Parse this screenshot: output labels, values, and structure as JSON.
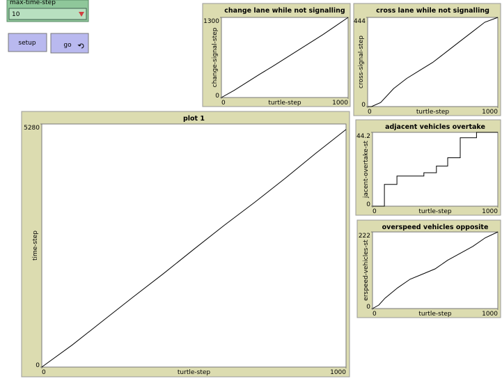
{
  "controls": {
    "chooser": {
      "label": "max-time-step",
      "value": "10"
    },
    "buttons": [
      "setup",
      "go"
    ]
  },
  "chart_data": [
    {
      "type": "line",
      "title": "change lane while not signalling",
      "xlabel": "turtle-step",
      "ylabel": "change-signal-step",
      "x": [
        0,
        100,
        200,
        300,
        400,
        500,
        600,
        700,
        800,
        900,
        1000
      ],
      "values": [
        0,
        115,
        245,
        375,
        500,
        630,
        760,
        890,
        1020,
        1160,
        1300
      ],
      "color": "#000000",
      "xlim": [
        0,
        1000
      ],
      "ylim": [
        0,
        1300
      ],
      "xticks": [
        0,
        1000
      ],
      "yticks": [
        0,
        1300
      ]
    },
    {
      "type": "line",
      "title": "cross lane while not signalling",
      "xlabel": "turtle-step",
      "ylabel": "cross-signal-step",
      "x": [
        0,
        30,
        100,
        200,
        300,
        400,
        500,
        600,
        700,
        800,
        900,
        1000
      ],
      "values": [
        0,
        0,
        20,
        90,
        140,
        180,
        220,
        270,
        320,
        370,
        420,
        444
      ],
      "color": "#000000",
      "xlim": [
        0,
        1000
      ],
      "ylim": [
        0,
        444
      ],
      "xticks": [
        0,
        1000
      ],
      "yticks": [
        0,
        444
      ]
    },
    {
      "type": "line",
      "title": "plot 1",
      "xlabel": "turtle-step",
      "ylabel": "time-step",
      "x": [
        0,
        100,
        200,
        300,
        400,
        500,
        600,
        700,
        800,
        900,
        1000
      ],
      "values": [
        0,
        480,
        1000,
        1520,
        2030,
        2560,
        3080,
        3580,
        4100,
        4640,
        5160
      ],
      "color": "#000000",
      "xlim": [
        0,
        1000
      ],
      "ylim": [
        0,
        5280
      ],
      "xticks": [
        0,
        1000
      ],
      "yticks": [
        0,
        5280
      ]
    },
    {
      "type": "line",
      "title": "adjacent vehicles overtake",
      "xlabel": "turtle-step",
      "ylabel": "jacent-overtake-st",
      "x": [
        0,
        95,
        95,
        195,
        195,
        410,
        410,
        510,
        510,
        600,
        600,
        700,
        700,
        830,
        830,
        1000
      ],
      "values": [
        0,
        0,
        13,
        13,
        18,
        18,
        20,
        20,
        24,
        24,
        29,
        29,
        41,
        41,
        44.2,
        44.2
      ],
      "color": "#000000",
      "xlim": [
        0,
        1000
      ],
      "ylim": [
        0,
        44.2
      ],
      "xticks": [
        0,
        1000
      ],
      "yticks": [
        0,
        44.2
      ]
    },
    {
      "type": "line",
      "title": "overspeed vehicles opposite",
      "xlabel": "turtle-step",
      "ylabel": "erspeed-vehicles-st",
      "x": [
        0,
        50,
        100,
        200,
        300,
        400,
        500,
        600,
        700,
        800,
        900,
        1000
      ],
      "values": [
        0,
        10,
        30,
        60,
        85,
        100,
        115,
        140,
        160,
        180,
        205,
        222
      ],
      "color": "#000000",
      "xlim": [
        0,
        1000
      ],
      "ylim": [
        0,
        222
      ],
      "xticks": [
        0,
        1000
      ],
      "yticks": [
        0,
        222
      ]
    }
  ]
}
